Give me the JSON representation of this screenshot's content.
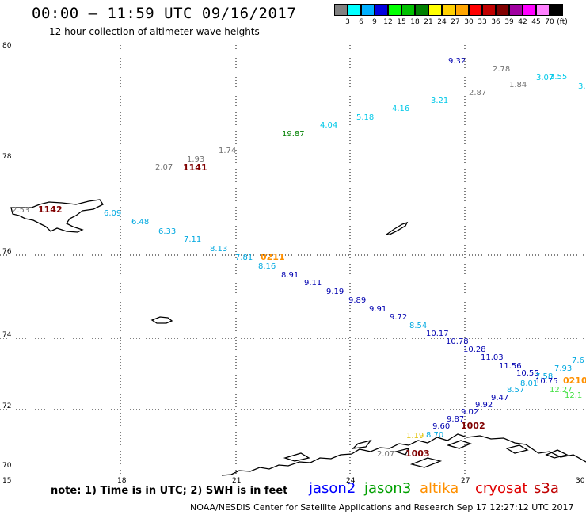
{
  "header": {
    "title": "00:00 – 11:59 UTC 09/16/2017",
    "subtitle": "12 hour collection of altimeter wave heights"
  },
  "legend": {
    "unit": "(ft)",
    "items": [
      {
        "label": "3",
        "color": "#808080"
      },
      {
        "label": "6",
        "color": "#00ffff"
      },
      {
        "label": "9",
        "color": "#00b0ff"
      },
      {
        "label": "12",
        "color": "#0000e0"
      },
      {
        "label": "15",
        "color": "#00ff00"
      },
      {
        "label": "18",
        "color": "#00c000"
      },
      {
        "label": "21",
        "color": "#008000"
      },
      {
        "label": "24",
        "color": "#ffff00"
      },
      {
        "label": "27",
        "color": "#ffd000"
      },
      {
        "label": "30",
        "color": "#ffa500"
      },
      {
        "label": "33",
        "color": "#ff0000"
      },
      {
        "label": "36",
        "color": "#c00000"
      },
      {
        "label": "39",
        "color": "#800000"
      },
      {
        "label": "42",
        "color": "#a000a0"
      },
      {
        "label": "45",
        "color": "#ff00ff"
      },
      {
        "label": "70",
        "color": "#ff80ff"
      },
      {
        "label": "",
        "color": "#000000"
      }
    ]
  },
  "axes": {
    "lat_labels": [
      "80",
      "78",
      "76",
      "74",
      "72",
      "70"
    ],
    "lon_labels": [
      "15",
      "18",
      "21",
      "24",
      "27",
      "30"
    ]
  },
  "observations": [
    {
      "text": "9.32",
      "color": "#0000b0"
    },
    {
      "text": "2.78",
      "color": "#707070"
    },
    {
      "text": "1.84",
      "color": "#707070"
    },
    {
      "text": "3.07",
      "color": "#00c8e8"
    },
    {
      "text": "3.55",
      "color": "#00c8e8"
    },
    {
      "text": "3.",
      "color": "#00c8e8"
    },
    {
      "text": "2.87",
      "color": "#707070"
    },
    {
      "text": "3.21",
      "color": "#00c8e8"
    },
    {
      "text": "4.16",
      "color": "#00c8e8"
    },
    {
      "text": "5.18",
      "color": "#00c8e8"
    },
    {
      "text": "4.04",
      "color": "#00c8e8"
    },
    {
      "text": "19.87",
      "color": "#008000"
    },
    {
      "text": "1.74",
      "color": "#707070"
    },
    {
      "text": "1.93",
      "color": "#707070"
    },
    {
      "text": "2.07",
      "color": "#707070"
    },
    {
      "text": "1141",
      "color": "#800000"
    },
    {
      "text": "2.53",
      "color": "#707070"
    },
    {
      "text": "1142",
      "color": "#800000"
    },
    {
      "text": "6.09",
      "color": "#00a8e0"
    },
    {
      "text": "6.48",
      "color": "#00a8e0"
    },
    {
      "text": "6.33",
      "color": "#00a8e0"
    },
    {
      "text": "7.11",
      "color": "#00a8e0"
    },
    {
      "text": "8.13",
      "color": "#00a8e0"
    },
    {
      "text": "7.81",
      "color": "#00a8e0"
    },
    {
      "text": "0211",
      "color": "#ff9000"
    },
    {
      "text": "8.16",
      "color": "#00a8e0"
    },
    {
      "text": "8.91",
      "color": "#0000b0"
    },
    {
      "text": "9.11",
      "color": "#0000b0"
    },
    {
      "text": "9.19",
      "color": "#0000b0"
    },
    {
      "text": "9.89",
      "color": "#0000b0"
    },
    {
      "text": "9.91",
      "color": "#0000b0"
    },
    {
      "text": "9.72",
      "color": "#0000b0"
    },
    {
      "text": "8.54",
      "color": "#00a8e0"
    },
    {
      "text": "10.17",
      "color": "#0000b0"
    },
    {
      "text": "10.78",
      "color": "#0000b0"
    },
    {
      "text": "10.28",
      "color": "#0000b0"
    },
    {
      "text": "11.03",
      "color": "#0000b0"
    },
    {
      "text": "11.56",
      "color": "#0000b0"
    },
    {
      "text": "10.55",
      "color": "#0000b0"
    },
    {
      "text": "7.58",
      "color": "#00a8e0"
    },
    {
      "text": "10.75",
      "color": "#0000b0"
    },
    {
      "text": "7.93",
      "color": "#00a8e0"
    },
    {
      "text": "7.6",
      "color": "#00a8e0"
    },
    {
      "text": "8.01",
      "color": "#00a8e0"
    },
    {
      "text": "0210",
      "color": "#ff9000"
    },
    {
      "text": "8.57",
      "color": "#00a8e0"
    },
    {
      "text": "12.27",
      "color": "#40e040"
    },
    {
      "text": "12.1",
      "color": "#40e040"
    },
    {
      "text": "9.47",
      "color": "#0000b0"
    },
    {
      "text": "9.92",
      "color": "#0000b0"
    },
    {
      "text": "9.02",
      "color": "#0000b0"
    },
    {
      "text": "9.87",
      "color": "#0000b0"
    },
    {
      "text": "1002",
      "color": "#800000"
    },
    {
      "text": "9.60",
      "color": "#0000b0"
    },
    {
      "text": "8.70",
      "color": "#00a8e0"
    },
    {
      "text": "1.19",
      "color": "#e0c000"
    },
    {
      "text": "2.07",
      "color": "#707070"
    },
    {
      "text": "1003",
      "color": "#800000"
    }
  ],
  "footer": {
    "note": "note: 1) Time is in UTC; 2) SWH is in feet",
    "satellites": [
      {
        "name": "jason2",
        "color": "#0000ff"
      },
      {
        "name": "jason3",
        "color": "#00a000"
      },
      {
        "name": "altika",
        "color": "#ff9000"
      },
      {
        "name": "cryosat",
        "color": "#e00000"
      },
      {
        "name": "s3a",
        "color": "#c00000"
      }
    ],
    "credit": "NOAA/NESDIS Center for Satellite Applications and Research   Sep 17 12:27:12 UTC 2017"
  }
}
